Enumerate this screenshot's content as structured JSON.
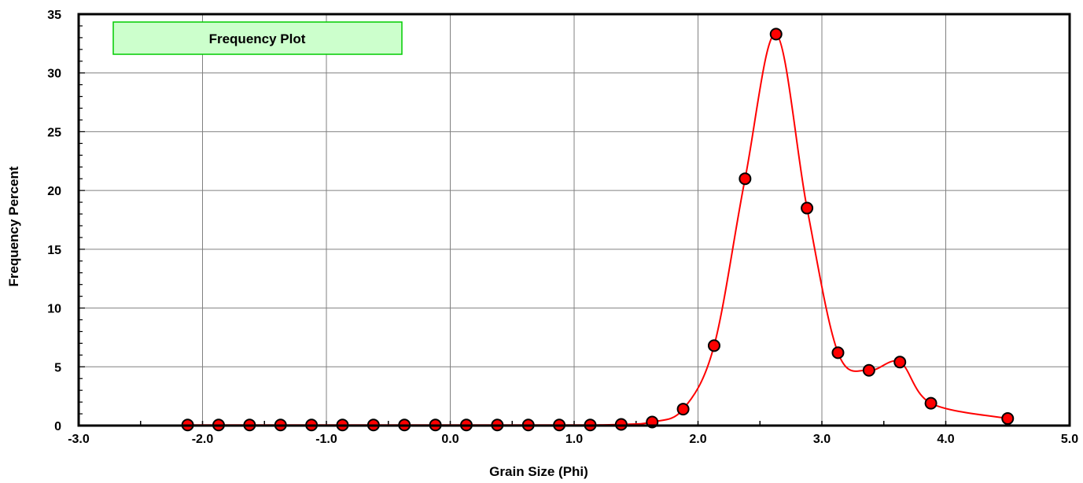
{
  "chart_data": {
    "type": "line",
    "title": "Frequency Plot",
    "xlabel": "Grain Size (Phi)",
    "ylabel": "Frequency Percent",
    "xlim": [
      -3.0,
      5.0
    ],
    "ylim": [
      0,
      35
    ],
    "x_ticks": [
      "-3.0",
      "-2.0",
      "-1.0",
      "0.0",
      "1.0",
      "2.0",
      "3.0",
      "4.0",
      "5.0"
    ],
    "y_ticks": [
      "0",
      "5",
      "10",
      "15",
      "20",
      "25",
      "30",
      "35"
    ],
    "x_tick_values": [
      -3,
      -2,
      -1,
      0,
      1,
      2,
      3,
      4,
      5
    ],
    "y_tick_values": [
      0,
      5,
      10,
      15,
      20,
      25,
      30,
      35
    ],
    "grid": true,
    "series": [
      {
        "line_color": "#ff0000",
        "marker_color": "#ff0000",
        "x": [
          -2.12,
          -1.87,
          -1.62,
          -1.37,
          -1.12,
          -0.87,
          -0.62,
          -0.37,
          -0.12,
          0.13,
          0.38,
          0.63,
          0.88,
          1.13,
          1.38,
          1.63,
          1.88,
          2.13,
          2.38,
          2.63,
          2.88,
          3.13,
          3.38,
          3.63,
          3.88,
          4.5
        ],
        "y": [
          0.05,
          0.05,
          0.05,
          0.05,
          0.05,
          0.05,
          0.05,
          0.05,
          0.05,
          0.05,
          0.05,
          0.05,
          0.05,
          0.05,
          0.1,
          0.3,
          1.4,
          6.8,
          21.0,
          33.3,
          18.5,
          6.2,
          4.7,
          5.4,
          1.9,
          0.6
        ]
      }
    ]
  },
  "colors": {
    "title_box_fill": "#ccffcc",
    "title_box_border": "#00cc00",
    "grid": "#808080",
    "line": "#ff0000"
  }
}
